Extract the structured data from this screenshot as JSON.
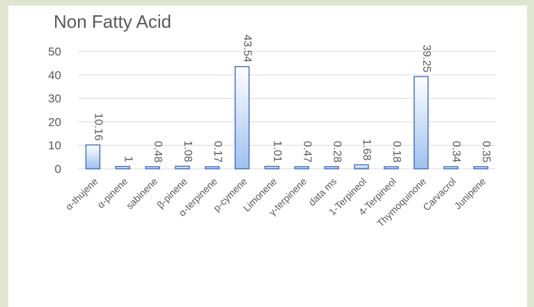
{
  "chart_data": {
    "type": "bar",
    "title": "Non Fatty Acid",
    "xlabel": "",
    "ylabel": "",
    "ylim": [
      0,
      50
    ],
    "yticks": [
      0,
      10,
      20,
      30,
      40,
      50
    ],
    "grid": true,
    "legend": "none",
    "categories": [
      "α-thujene",
      "α-pinene",
      "sabinene",
      "β-pinene",
      "α-terpinene",
      "p-cymene",
      "Limonene",
      "γ-terpinene",
      "data ms",
      "1-Terpineol",
      "4-Terpineol",
      "Thymoquinone",
      "Carvacrol",
      "Junipene"
    ],
    "values": [
      10.16,
      1,
      0.48,
      1.08,
      0.17,
      43.54,
      1.01,
      0.47,
      0.28,
      1.68,
      0.18,
      39.25,
      0.34,
      0.35
    ],
    "data_labels": [
      "10.16",
      "1",
      "0.48",
      "1.08",
      "0.17",
      "43.54",
      "1.01",
      "0.47",
      "0.28",
      "1.68",
      "0.18",
      "39.25",
      "0.34",
      "0.35"
    ],
    "colors": {
      "bar_fill_top": "#ffffff",
      "bar_fill_bottom": "#9ec1ee",
      "bar_stroke": "#4472c4",
      "grid": "#d9d9d9",
      "text": "#595959",
      "background": "#dfe6cf"
    }
  }
}
